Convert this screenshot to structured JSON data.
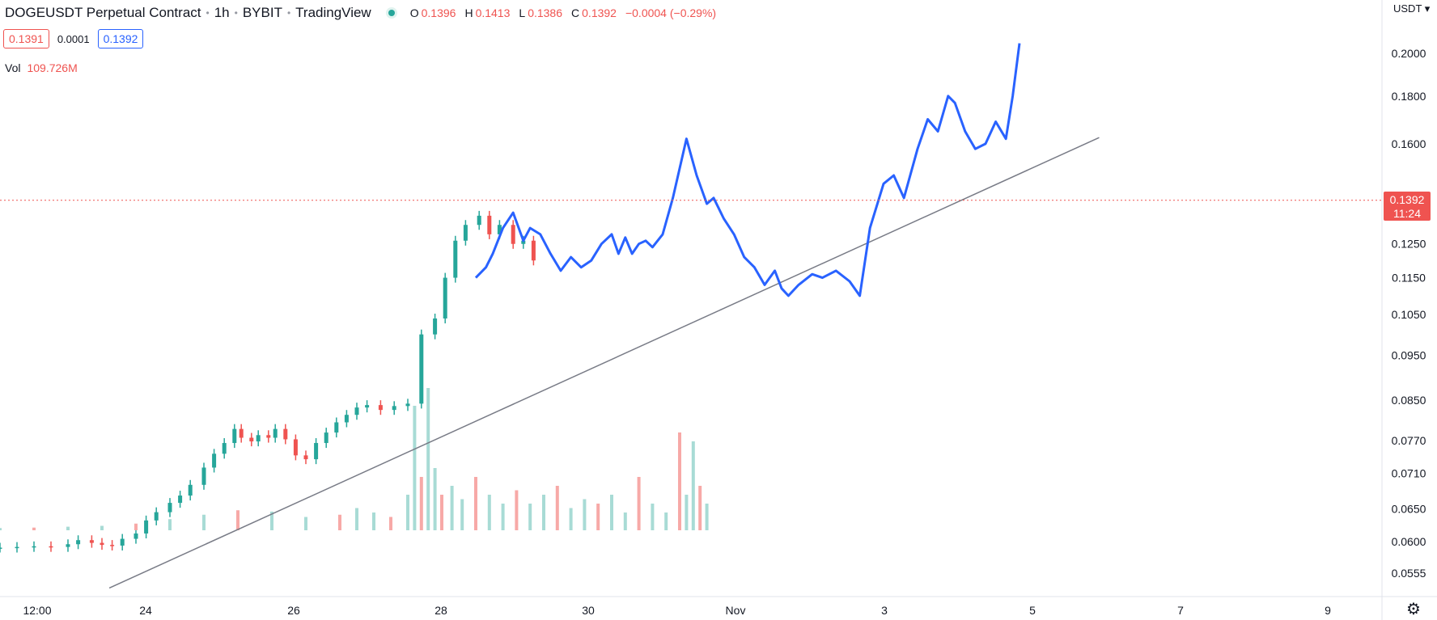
{
  "legend": {
    "symbol": "DOGEUSDT Perpetual Contract",
    "interval": "1h",
    "exchange": "BYBIT",
    "source": "TradingView",
    "ohlc": [
      {
        "key": "O",
        "value": "0.1396"
      },
      {
        "key": "H",
        "value": "0.1413"
      },
      {
        "key": "L",
        "value": "0.1386"
      },
      {
        "key": "C",
        "value": "0.1392"
      }
    ],
    "change": "−0.0004 (−0.29%)"
  },
  "quote": {
    "bid": "0.1391",
    "spread": "0.0001",
    "ask": "0.1392"
  },
  "volume": {
    "label": "Vol",
    "value": "109.726M"
  },
  "price_scale": {
    "currency": "USDT ▾",
    "current_price": "0.1392",
    "countdown": "11:24"
  },
  "colors": {
    "up": "#26a69a",
    "down": "#ef5350",
    "line": "#2962ff",
    "trendline": "#787b86",
    "price_line": "#ef5350"
  },
  "icons": {
    "settings": "gear-icon",
    "status": "market-status-icon"
  },
  "chart_data": {
    "type": "line",
    "scale": "log",
    "grid": false,
    "y_ticks": [
      "0.2000",
      "0.1800",
      "0.1600",
      "0.1392",
      "0.1250",
      "0.1150",
      "0.1050",
      "0.0950",
      "0.0850",
      "0.0770",
      "0.0710",
      "0.0650",
      "0.0600",
      "0.0555"
    ],
    "x_ticks": [
      "12:00",
      "24",
      "26",
      "28",
      "30",
      "Nov",
      "3",
      "5",
      "7",
      "9"
    ],
    "candle_series": {
      "name": "Candles",
      "x": [
        0,
        0.5,
        1,
        1.5,
        2,
        2.3,
        2.7,
        3,
        3.3,
        3.6,
        4,
        4.3,
        4.6,
        5,
        5.3,
        5.6,
        6,
        6.3,
        6.6,
        6.9,
        7.1,
        7.4,
        7.6,
        7.9,
        8.1,
        8.4,
        8.7,
        9,
        9.3,
        9.6,
        9.9,
        10.2,
        10.5,
        10.8,
        11.2,
        11.6,
        12,
        12.4,
        12.8,
        13.1,
        13.4,
        13.7,
        14.1,
        14.4,
        14.7,
        15.1,
        15.4,
        15.7
      ],
      "values": [
        0.0591,
        0.0592,
        0.0593,
        0.0592,
        0.0596,
        0.0602,
        0.0598,
        0.0595,
        0.0594,
        0.0604,
        0.0612,
        0.0632,
        0.0645,
        0.066,
        0.0672,
        0.069,
        0.072,
        0.0745,
        0.0765,
        0.0792,
        0.0775,
        0.0768,
        0.078,
        0.0775,
        0.0792,
        0.0772,
        0.0742,
        0.0735,
        0.0765,
        0.0785,
        0.0805,
        0.082,
        0.0835,
        0.084,
        0.083,
        0.0838,
        0.0843,
        0.1,
        0.104,
        0.115,
        0.126,
        0.131,
        0.134,
        0.128,
        0.131,
        0.125,
        0.126,
        0.12
      ]
    },
    "line_series": {
      "name": "Close",
      "x": [
        14,
        14.3,
        14.5,
        14.8,
        15.1,
        15.4,
        15.6,
        15.9,
        16.2,
        16.5,
        16.8,
        17.1,
        17.4,
        17.7,
        18,
        18.2,
        18.4,
        18.6,
        18.8,
        19,
        19.2,
        19.5,
        19.8,
        20.2,
        20.5,
        20.8,
        21,
        21.3,
        21.6,
        21.9,
        22.2,
        22.5,
        22.8,
        23,
        23.2,
        23.5,
        23.9,
        24.2,
        24.6,
        25,
        25.3,
        25.6,
        26,
        26.3,
        26.6,
        27,
        27.3,
        27.6,
        27.9,
        28.1,
        28.4,
        28.7,
        29,
        29.3,
        29.6,
        29.8,
        30
      ],
      "values": [
        0.115,
        0.118,
        0.122,
        0.13,
        0.135,
        0.126,
        0.13,
        0.128,
        0.122,
        0.117,
        0.121,
        0.118,
        0.12,
        0.125,
        0.128,
        0.122,
        0.127,
        0.122,
        0.125,
        0.126,
        0.124,
        0.128,
        0.14,
        0.162,
        0.148,
        0.138,
        0.14,
        0.133,
        0.128,
        0.121,
        0.118,
        0.113,
        0.117,
        0.112,
        0.11,
        0.113,
        0.116,
        0.115,
        0.117,
        0.114,
        0.11,
        0.13,
        0.145,
        0.148,
        0.14,
        0.158,
        0.17,
        0.165,
        0.18,
        0.177,
        0.165,
        0.158,
        0.16,
        0.169,
        0.162,
        0.18,
        0.205
      ]
    },
    "volume_series": {
      "name": "Vol",
      "x": [
        0,
        1,
        2,
        3,
        4,
        5,
        6,
        7,
        8,
        9,
        10,
        10.5,
        11,
        11.5,
        12,
        12.2,
        12.4,
        12.6,
        12.8,
        13,
        13.3,
        13.6,
        14,
        14.4,
        14.8,
        15.2,
        15.6,
        16,
        16.4,
        16.8,
        17.2,
        17.6,
        18,
        18.4,
        18.8,
        19.2,
        19.6,
        20,
        20.2,
        20.4,
        20.6,
        20.8
      ],
      "values": [
        0.5,
        0.6,
        0.8,
        1.0,
        1.5,
        2.5,
        3.5,
        4.5,
        4.2,
        3.0,
        3.5,
        5,
        4,
        3,
        8,
        28,
        12,
        32,
        14,
        8,
        10,
        7,
        12,
        8,
        6,
        9,
        6,
        8,
        10,
        5,
        7,
        6,
        8,
        4,
        12,
        6,
        4,
        22,
        8,
        20,
        10,
        6
      ]
    },
    "trendline": {
      "from": {
        "x": 8.8,
        "value": 0.0535
      },
      "to": {
        "x": 88.5,
        "value": 0.1625
      }
    }
  }
}
